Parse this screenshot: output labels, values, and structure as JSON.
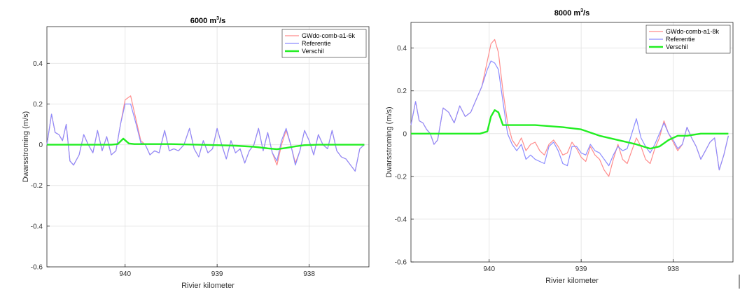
{
  "chart_data": [
    {
      "type": "line",
      "title": "6000  m",
      "title_sup": "3",
      "title_unit": "/s",
      "xlabel": "Rivier kilometer",
      "ylabel": "Dwarsstroming (m/s)",
      "xlim": [
        940.85,
        937.35
      ],
      "ylim": [
        -0.6,
        0.58
      ],
      "xticks": [
        {
          "v": 940,
          "label": "940"
        },
        {
          "v": 939,
          "label": "939"
        },
        {
          "v": 938,
          "label": "938"
        }
      ],
      "yticks": [
        {
          "v": 0.4,
          "label": "0.4"
        },
        {
          "v": 0.2,
          "label": "0.2"
        },
        {
          "v": 0,
          "label": "0"
        },
        {
          "v": -0.2,
          "label": "-0.2"
        },
        {
          "v": -0.4,
          "label": "-0.4"
        },
        {
          "v": -0.6,
          "label": "-0.6"
        }
      ],
      "grid": true,
      "legend_position": "top-right",
      "series": [
        {
          "name": "GWdo-comb-a1-6k",
          "color": "#ff8c8c",
          "width": 1.2,
          "x": [
            940.85,
            940.8,
            940.76,
            940.72,
            940.68,
            940.64,
            940.6,
            940.56,
            940.5,
            940.45,
            940.4,
            940.35,
            940.3,
            940.25,
            940.2,
            940.15,
            940.1,
            940.05,
            940.0,
            939.94,
            939.88,
            939.83,
            939.78,
            939.73,
            939.68,
            939.63,
            939.57,
            939.52,
            939.47,
            939.42,
            939.36,
            939.3,
            939.25,
            939.2,
            939.15,
            939.1,
            939.05,
            939.0,
            938.95,
            938.9,
            938.85,
            938.8,
            938.75,
            938.7,
            938.65,
            938.6,
            938.55,
            938.5,
            938.45,
            938.4,
            938.35,
            938.3,
            938.25,
            938.2,
            938.15,
            938.1,
            938.05,
            938.0,
            937.95,
            937.9,
            937.85,
            937.8,
            937.75,
            937.7,
            937.65,
            937.6,
            937.55,
            937.5,
            937.45,
            937.4
          ],
          "y": [
            0.0,
            0.15,
            0.06,
            0.05,
            0.02,
            0.1,
            -0.08,
            -0.1,
            -0.05,
            0.05,
            0.0,
            -0.04,
            0.07,
            -0.03,
            0.04,
            -0.05,
            -0.03,
            0.1,
            0.22,
            0.24,
            0.12,
            0.02,
            0.0,
            -0.05,
            -0.03,
            -0.04,
            0.07,
            -0.03,
            -0.02,
            -0.03,
            0.0,
            0.08,
            -0.02,
            -0.06,
            0.02,
            -0.04,
            -0.02,
            0.08,
            0.0,
            -0.07,
            0.02,
            -0.04,
            -0.02,
            -0.09,
            -0.03,
            0.0,
            0.08,
            -0.03,
            0.06,
            -0.04,
            -0.1,
            0.0,
            0.07,
            0.0,
            -0.09,
            -0.03,
            0.07,
            0.02,
            -0.05,
            0.05,
            0.0,
            -0.02,
            0.07,
            -0.03,
            -0.06,
            -0.07,
            -0.1,
            -0.13,
            -0.02,
            0.0
          ]
        },
        {
          "name": "Referentie",
          "color": "#8c8cff",
          "width": 1.2,
          "x": [
            940.85,
            940.8,
            940.76,
            940.72,
            940.68,
            940.64,
            940.6,
            940.56,
            940.5,
            940.45,
            940.4,
            940.35,
            940.3,
            940.25,
            940.2,
            940.15,
            940.1,
            940.05,
            940.0,
            939.94,
            939.88,
            939.83,
            939.78,
            939.73,
            939.68,
            939.63,
            939.57,
            939.52,
            939.47,
            939.42,
            939.36,
            939.3,
            939.25,
            939.2,
            939.15,
            939.1,
            939.05,
            939.0,
            938.95,
            938.9,
            938.85,
            938.8,
            938.75,
            938.7,
            938.65,
            938.6,
            938.55,
            938.5,
            938.45,
            938.4,
            938.35,
            938.3,
            938.25,
            938.2,
            938.15,
            938.1,
            938.05,
            938.0,
            937.95,
            937.9,
            937.85,
            937.8,
            937.75,
            937.7,
            937.65,
            937.6,
            937.55,
            937.5,
            937.45,
            937.4
          ],
          "y": [
            0.0,
            0.15,
            0.06,
            0.05,
            0.02,
            0.1,
            -0.08,
            -0.1,
            -0.05,
            0.05,
            0.0,
            -0.04,
            0.07,
            -0.03,
            0.04,
            -0.05,
            -0.03,
            0.1,
            0.2,
            0.2,
            0.1,
            0.01,
            0.0,
            -0.05,
            -0.03,
            -0.04,
            0.07,
            -0.03,
            -0.02,
            -0.03,
            0.0,
            0.08,
            -0.02,
            -0.06,
            0.02,
            -0.04,
            -0.02,
            0.08,
            0.0,
            -0.07,
            0.02,
            -0.04,
            -0.02,
            -0.09,
            -0.03,
            0.0,
            0.08,
            -0.03,
            0.06,
            -0.04,
            -0.08,
            0.02,
            0.08,
            0.0,
            -0.1,
            -0.03,
            0.07,
            0.02,
            -0.05,
            0.05,
            0.0,
            -0.02,
            0.07,
            -0.03,
            -0.06,
            -0.07,
            -0.1,
            -0.13,
            -0.02,
            0.0
          ]
        },
        {
          "name": "Verschil",
          "color": "#22ee22",
          "width": 2.4,
          "x": [
            940.85,
            940.5,
            940.2,
            940.15,
            940.08,
            940.02,
            939.96,
            939.9,
            939.8,
            939.5,
            939.2,
            939.0,
            938.8,
            938.6,
            938.45,
            938.35,
            938.25,
            938.15,
            938.05,
            937.9,
            937.6,
            937.4
          ],
          "y": [
            0.0,
            0.0,
            0.0,
            0.0,
            0.003,
            0.03,
            0.006,
            0.003,
            0.003,
            0.003,
            0.0,
            -0.002,
            -0.005,
            -0.01,
            -0.018,
            -0.022,
            -0.016,
            -0.008,
            -0.002,
            0.0,
            0.0,
            0.0
          ]
        }
      ]
    },
    {
      "type": "line",
      "title": "8000  m",
      "title_sup": "3",
      "title_unit": "/s",
      "xlabel": "Rivier kilometer",
      "ylabel": "Dwarsstroming (m/s)",
      "xlim": [
        940.85,
        937.35
      ],
      "ylim": [
        -0.6,
        0.52
      ],
      "xticks": [
        {
          "v": 940,
          "label": "940"
        },
        {
          "v": 939,
          "label": "939"
        },
        {
          "v": 938,
          "label": "938"
        }
      ],
      "yticks": [
        {
          "v": 0.4,
          "label": "0.4"
        },
        {
          "v": 0.2,
          "label": "0.2"
        },
        {
          "v": 0,
          "label": "0"
        },
        {
          "v": -0.2,
          "label": "-0.2"
        },
        {
          "v": -0.4,
          "label": "-0.4"
        },
        {
          "v": -0.6,
          "label": "-0.6"
        }
      ],
      "grid": true,
      "legend_position": "top-right",
      "series": [
        {
          "name": "GWdo-comb-a1-8k",
          "color": "#ff8c8c",
          "width": 1.2,
          "x": [
            940.85,
            940.8,
            940.76,
            940.72,
            940.68,
            940.64,
            940.6,
            940.56,
            940.5,
            940.44,
            940.38,
            940.32,
            940.26,
            940.2,
            940.14,
            940.08,
            940.02,
            939.98,
            939.94,
            939.9,
            939.85,
            939.8,
            939.75,
            939.7,
            939.65,
            939.6,
            939.55,
            939.5,
            939.45,
            939.4,
            939.35,
            939.3,
            939.25,
            939.2,
            939.15,
            939.1,
            939.05,
            939.0,
            938.95,
            938.9,
            938.85,
            938.8,
            938.75,
            938.7,
            938.65,
            938.6,
            938.55,
            938.5,
            938.45,
            938.4,
            938.35,
            938.3,
            938.25,
            938.2,
            938.15,
            938.1,
            938.05,
            938.0,
            937.95,
            937.9,
            937.85,
            937.8,
            937.75,
            937.7,
            937.65,
            937.6,
            937.55,
            937.5,
            937.45,
            937.4
          ],
          "y": [
            0.04,
            0.15,
            0.06,
            0.05,
            0.02,
            0.0,
            -0.05,
            -0.03,
            0.12,
            0.1,
            0.05,
            0.13,
            0.08,
            0.1,
            0.16,
            0.22,
            0.34,
            0.42,
            0.44,
            0.38,
            0.2,
            0.05,
            -0.03,
            -0.06,
            -0.02,
            -0.08,
            -0.05,
            -0.04,
            -0.08,
            -0.1,
            -0.05,
            -0.03,
            -0.06,
            -0.1,
            -0.09,
            -0.04,
            -0.07,
            -0.11,
            -0.13,
            -0.06,
            -0.1,
            -0.12,
            -0.17,
            -0.2,
            -0.12,
            -0.05,
            -0.12,
            -0.14,
            -0.08,
            -0.02,
            -0.06,
            -0.12,
            -0.14,
            -0.07,
            -0.02,
            0.06,
            0.0,
            -0.04,
            -0.08,
            -0.05,
            0.03,
            -0.02,
            -0.06,
            -0.12,
            -0.08,
            -0.04,
            -0.02,
            -0.17,
            -0.1,
            -0.01
          ]
        },
        {
          "name": "Referentie",
          "color": "#8c8cff",
          "width": 1.2,
          "x": [
            940.85,
            940.8,
            940.76,
            940.72,
            940.68,
            940.64,
            940.6,
            940.56,
            940.5,
            940.44,
            940.38,
            940.32,
            940.26,
            940.2,
            940.14,
            940.08,
            940.02,
            939.98,
            939.94,
            939.9,
            939.85,
            939.8,
            939.75,
            939.7,
            939.65,
            939.6,
            939.55,
            939.5,
            939.45,
            939.4,
            939.35,
            939.3,
            939.25,
            939.2,
            939.15,
            939.1,
            939.05,
            939.0,
            938.95,
            938.9,
            938.85,
            938.8,
            938.75,
            938.7,
            938.65,
            938.6,
            938.55,
            938.5,
            938.45,
            938.4,
            938.35,
            938.3,
            938.25,
            938.2,
            938.15,
            938.1,
            938.05,
            938.0,
            937.95,
            937.9,
            937.85,
            937.8,
            937.75,
            937.7,
            937.65,
            937.6,
            937.55,
            937.5,
            937.45,
            937.4
          ],
          "y": [
            0.04,
            0.15,
            0.06,
            0.05,
            0.02,
            0.0,
            -0.05,
            -0.03,
            0.12,
            0.1,
            0.05,
            0.13,
            0.08,
            0.1,
            0.16,
            0.22,
            0.3,
            0.34,
            0.33,
            0.3,
            0.15,
            0.0,
            -0.05,
            -0.08,
            -0.05,
            -0.12,
            -0.1,
            -0.12,
            -0.13,
            -0.14,
            -0.06,
            -0.04,
            -0.08,
            -0.14,
            -0.15,
            -0.06,
            -0.06,
            -0.09,
            -0.1,
            -0.05,
            -0.08,
            -0.09,
            -0.12,
            -0.15,
            -0.1,
            -0.06,
            -0.08,
            -0.07,
            0.0,
            0.07,
            -0.02,
            -0.06,
            -0.09,
            -0.05,
            0.0,
            0.05,
            0.0,
            -0.03,
            -0.07,
            -0.05,
            0.03,
            -0.02,
            -0.06,
            -0.12,
            -0.08,
            -0.04,
            -0.02,
            -0.17,
            -0.1,
            -0.01
          ]
        },
        {
          "name": "Verschil",
          "color": "#22ee22",
          "width": 2.4,
          "x": [
            940.85,
            940.5,
            940.3,
            940.1,
            940.02,
            939.98,
            939.94,
            939.9,
            939.85,
            939.8,
            939.5,
            939.2,
            939.0,
            938.8,
            938.6,
            938.4,
            938.25,
            938.15,
            938.05,
            937.95,
            937.85,
            937.7,
            937.5,
            937.4
          ],
          "y": [
            0.0,
            0.0,
            0.0,
            0.0,
            0.01,
            0.08,
            0.11,
            0.1,
            0.04,
            0.04,
            0.04,
            0.03,
            0.02,
            -0.01,
            -0.03,
            -0.05,
            -0.07,
            -0.06,
            -0.03,
            -0.01,
            -0.01,
            0.0,
            0.0,
            0.0
          ]
        }
      ]
    }
  ]
}
